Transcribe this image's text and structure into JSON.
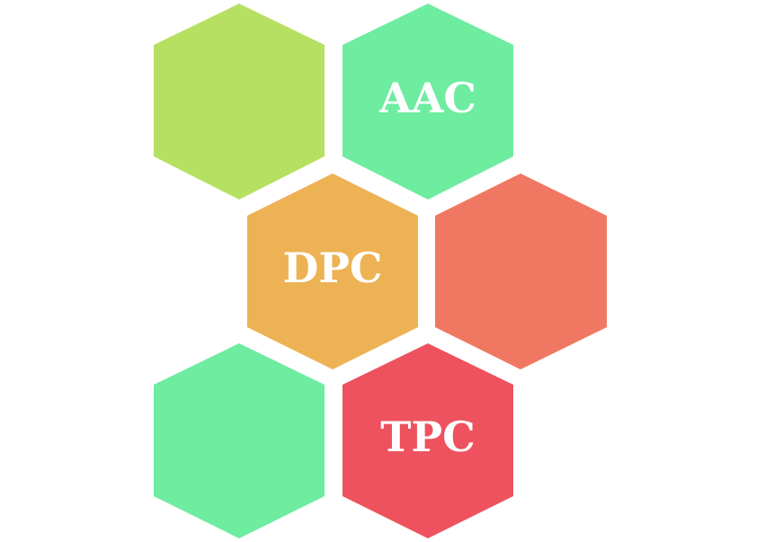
{
  "diagram": {
    "hexagons": [
      {
        "id": "hex-top-left",
        "label": "",
        "color": "#b6e061"
      },
      {
        "id": "hex-top-right",
        "label": "AAC",
        "color": "#6eeca0"
      },
      {
        "id": "hex-middle-left",
        "label": "DPC",
        "color": "#edb254"
      },
      {
        "id": "hex-middle-right",
        "label": "",
        "color": "#f07862"
      },
      {
        "id": "hex-bottom-left",
        "label": "",
        "color": "#6eeca0"
      },
      {
        "id": "hex-bottom-right",
        "label": "TPC",
        "color": "#ee525f"
      }
    ]
  }
}
